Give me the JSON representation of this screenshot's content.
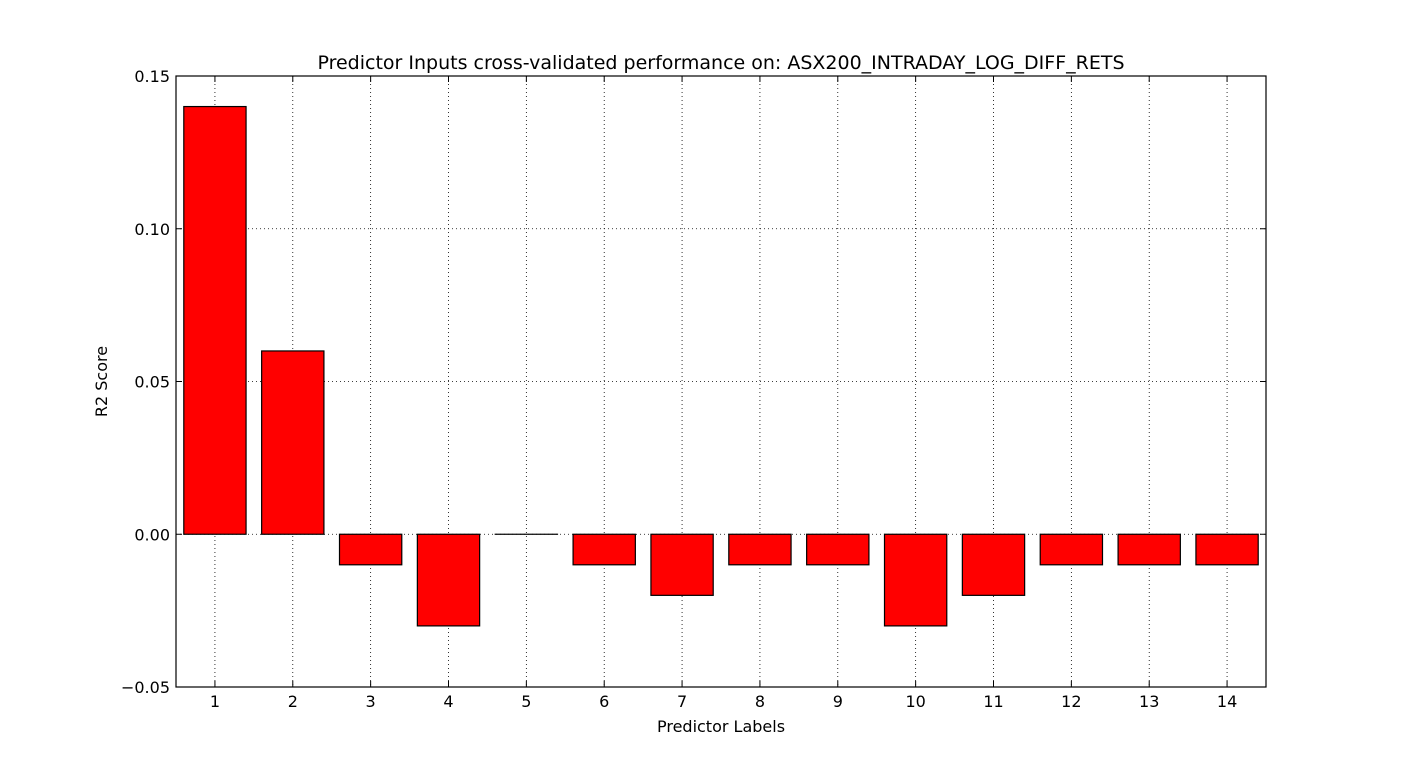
{
  "chart_data": {
    "type": "bar",
    "title": "Predictor Inputs cross-validated performance on: ASX200_INTRADAY_LOG_DIFF_RETS",
    "xlabel": "Predictor Labels",
    "ylabel": "R2 Score",
    "categories": [
      "1",
      "2",
      "3",
      "4",
      "5",
      "6",
      "7",
      "8",
      "9",
      "10",
      "11",
      "12",
      "13",
      "14"
    ],
    "values": [
      0.14,
      0.06,
      -0.01,
      -0.03,
      0.0,
      -0.01,
      -0.02,
      -0.01,
      -0.01,
      -0.03,
      -0.02,
      -0.01,
      -0.01,
      -0.01
    ],
    "ylim": [
      -0.05,
      0.15
    ],
    "xlim": [
      0.5,
      14.5
    ],
    "yticks": [
      -0.05,
      0.0,
      0.05,
      0.1,
      0.15
    ],
    "ytick_labels": [
      "−0.05",
      "0.00",
      "0.05",
      "0.10",
      "0.15"
    ],
    "grid": true,
    "bar_color": "#ff0000",
    "bar_edge_color": "#000000"
  }
}
